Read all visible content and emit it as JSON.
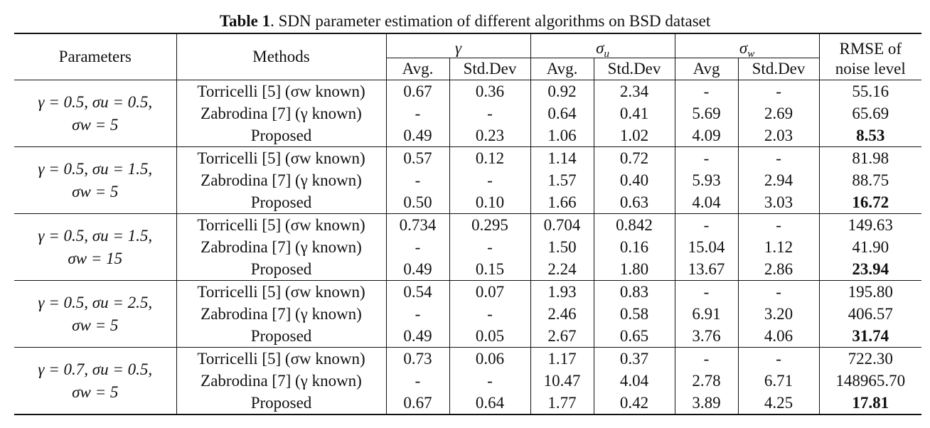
{
  "caption": {
    "label": "Table 1",
    "text": ". SDN parameter estimation of different algorithms on BSD dataset"
  },
  "header": {
    "parameters": "Parameters",
    "methods": "Methods",
    "gamma": "γ",
    "sigma_u": "σ",
    "sigma_u_sub": "u",
    "sigma_w": "σ",
    "sigma_w_sub": "w",
    "rmse_line1": "RMSE of",
    "rmse_line2": "noise level",
    "avg_dot": "Avg.",
    "std_dev": "Std.Dev",
    "avg": "Avg"
  },
  "groups": [
    {
      "param_line1": "γ = 0.5, σu = 0.5,",
      "param_line2": "σw = 5",
      "rows": [
        {
          "method": "Torricelli [5] (σw known)",
          "g_avg": "0.67",
          "g_std": "0.36",
          "u_avg": "0.92",
          "u_std": "2.34",
          "w_avg": "-",
          "w_std": "-",
          "rmse": "55.16"
        },
        {
          "method": "Zabrodina [7] (γ known)",
          "g_avg": "-",
          "g_std": "-",
          "u_avg": "0.64",
          "u_std": "0.41",
          "w_avg": "5.69",
          "w_std": "2.69",
          "rmse": "65.69"
        },
        {
          "method": "Proposed",
          "g_avg": "0.49",
          "g_std": "0.23",
          "u_avg": "1.06",
          "u_std": "1.02",
          "w_avg": "4.09",
          "w_std": "2.03",
          "rmse": "8.53"
        }
      ]
    },
    {
      "param_line1": "γ = 0.5, σu = 1.5,",
      "param_line2": "σw = 5",
      "rows": [
        {
          "method": "Torricelli [5] (σw known)",
          "g_avg": "0.57",
          "g_std": "0.12",
          "u_avg": "1.14",
          "u_std": "0.72",
          "w_avg": "-",
          "w_std": "-",
          "rmse": "81.98"
        },
        {
          "method": "Zabrodina [7] (γ known)",
          "g_avg": "-",
          "g_std": "-",
          "u_avg": "1.57",
          "u_std": "0.40",
          "w_avg": "5.93",
          "w_std": "2.94",
          "rmse": "88.75"
        },
        {
          "method": "Proposed",
          "g_avg": "0.50",
          "g_std": "0.10",
          "u_avg": "1.66",
          "u_std": "0.63",
          "w_avg": "4.04",
          "w_std": "3.03",
          "rmse": "16.72"
        }
      ]
    },
    {
      "param_line1": "γ = 0.5, σu = 1.5,",
      "param_line2": "σw = 15",
      "rows": [
        {
          "method": "Torricelli [5] (σw known)",
          "g_avg": "0.734",
          "g_std": "0.295",
          "u_avg": "0.704",
          "u_std": "0.842",
          "w_avg": "-",
          "w_std": "-",
          "rmse": "149.63"
        },
        {
          "method": "Zabrodina [7] (γ known)",
          "g_avg": "-",
          "g_std": "-",
          "u_avg": "1.50",
          "u_std": "0.16",
          "w_avg": "15.04",
          "w_std": "1.12",
          "rmse": "41.90"
        },
        {
          "method": "Proposed",
          "g_avg": "0.49",
          "g_std": "0.15",
          "u_avg": "2.24",
          "u_std": "1.80",
          "w_avg": "13.67",
          "w_std": "2.86",
          "rmse": "23.94"
        }
      ]
    },
    {
      "param_line1": "γ = 0.5, σu = 2.5,",
      "param_line2": "σw = 5",
      "rows": [
        {
          "method": "Torricelli [5] (σw known)",
          "g_avg": "0.54",
          "g_std": "0.07",
          "u_avg": "1.93",
          "u_std": "0.83",
          "w_avg": "-",
          "w_std": "-",
          "rmse": "195.80"
        },
        {
          "method": "Zabrodina [7] (γ known)",
          "g_avg": "-",
          "g_std": "-",
          "u_avg": "2.46",
          "u_std": "0.58",
          "w_avg": "6.91",
          "w_std": "3.20",
          "rmse": "406.57"
        },
        {
          "method": "Proposed",
          "g_avg": "0.49",
          "g_std": "0.05",
          "u_avg": "2.67",
          "u_std": "0.65",
          "w_avg": "3.76",
          "w_std": "4.06",
          "rmse": "31.74"
        }
      ]
    },
    {
      "param_line1": "γ = 0.7, σu = 0.5,",
      "param_line2": "σw = 5",
      "rows": [
        {
          "method": "Torricelli [5] (σw known)",
          "g_avg": "0.73",
          "g_std": "0.06",
          "u_avg": "1.17",
          "u_std": "0.37",
          "w_avg": "-",
          "w_std": "-",
          "rmse": "722.30"
        },
        {
          "method": "Zabrodina [7] (γ known)",
          "g_avg": "-",
          "g_std": "-",
          "u_avg": "10.47",
          "u_std": "4.04",
          "w_avg": "2.78",
          "w_std": "6.71",
          "rmse": "148965.70"
        },
        {
          "method": "Proposed",
          "g_avg": "0.67",
          "g_std": "0.64",
          "u_avg": "1.77",
          "u_std": "0.42",
          "w_avg": "3.89",
          "w_std": "4.25",
          "rmse": "17.81"
        }
      ]
    }
  ]
}
